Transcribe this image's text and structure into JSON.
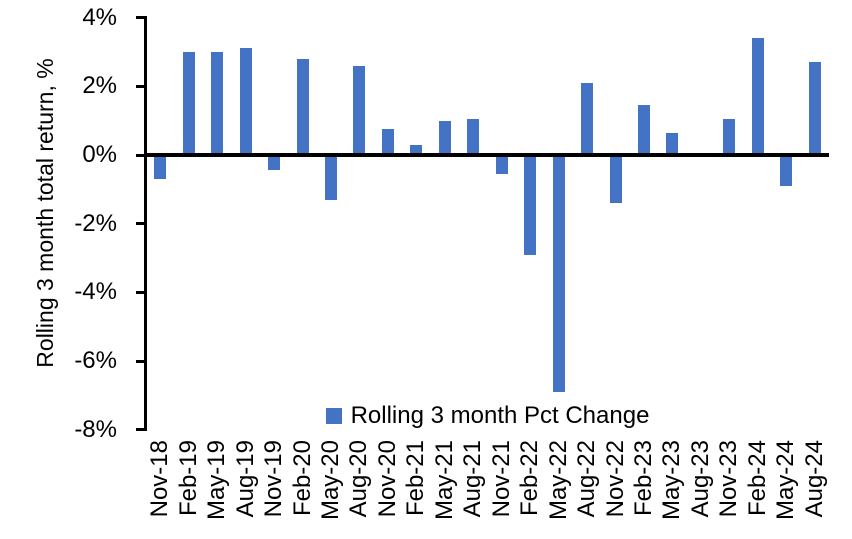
{
  "chart_data": {
    "type": "bar",
    "title": "",
    "xlabel": "",
    "ylabel": "Rolling 3 month total return, %",
    "categories": [
      "Nov-18",
      "Feb-19",
      "May-19",
      "Aug-19",
      "Nov-19",
      "Feb-20",
      "May-20",
      "Aug-20",
      "Nov-20",
      "Feb-21",
      "May-21",
      "Aug-21",
      "Nov-21",
      "Feb-22",
      "May-22",
      "Aug-22",
      "Nov-22",
      "Feb-23",
      "May-23",
      "Aug-23",
      "Nov-23",
      "Feb-24",
      "May-24",
      "Aug-24"
    ],
    "values": [
      -0.7,
      3.0,
      3.0,
      3.1,
      -0.45,
      2.8,
      -1.3,
      2.6,
      0.75,
      0.3,
      1.0,
      1.05,
      -0.55,
      -2.9,
      -6.9,
      2.1,
      -1.4,
      1.45,
      0.65,
      0,
      1.05,
      3.4,
      -0.9,
      2.7
    ],
    "ylim": [
      -8,
      4
    ],
    "ytick_step": 2,
    "ytick_labels": [
      "4%",
      "2%",
      "0%",
      "-2%",
      "-4%",
      "-6%",
      "-8%"
    ],
    "grid": false,
    "legend_position": "bottom-center",
    "legend": {
      "label": "Rolling 3 month Pct Change"
    },
    "bar_color": "#4472C4",
    "axis_color": "#000000",
    "background_color": "#FFFFFF"
  }
}
